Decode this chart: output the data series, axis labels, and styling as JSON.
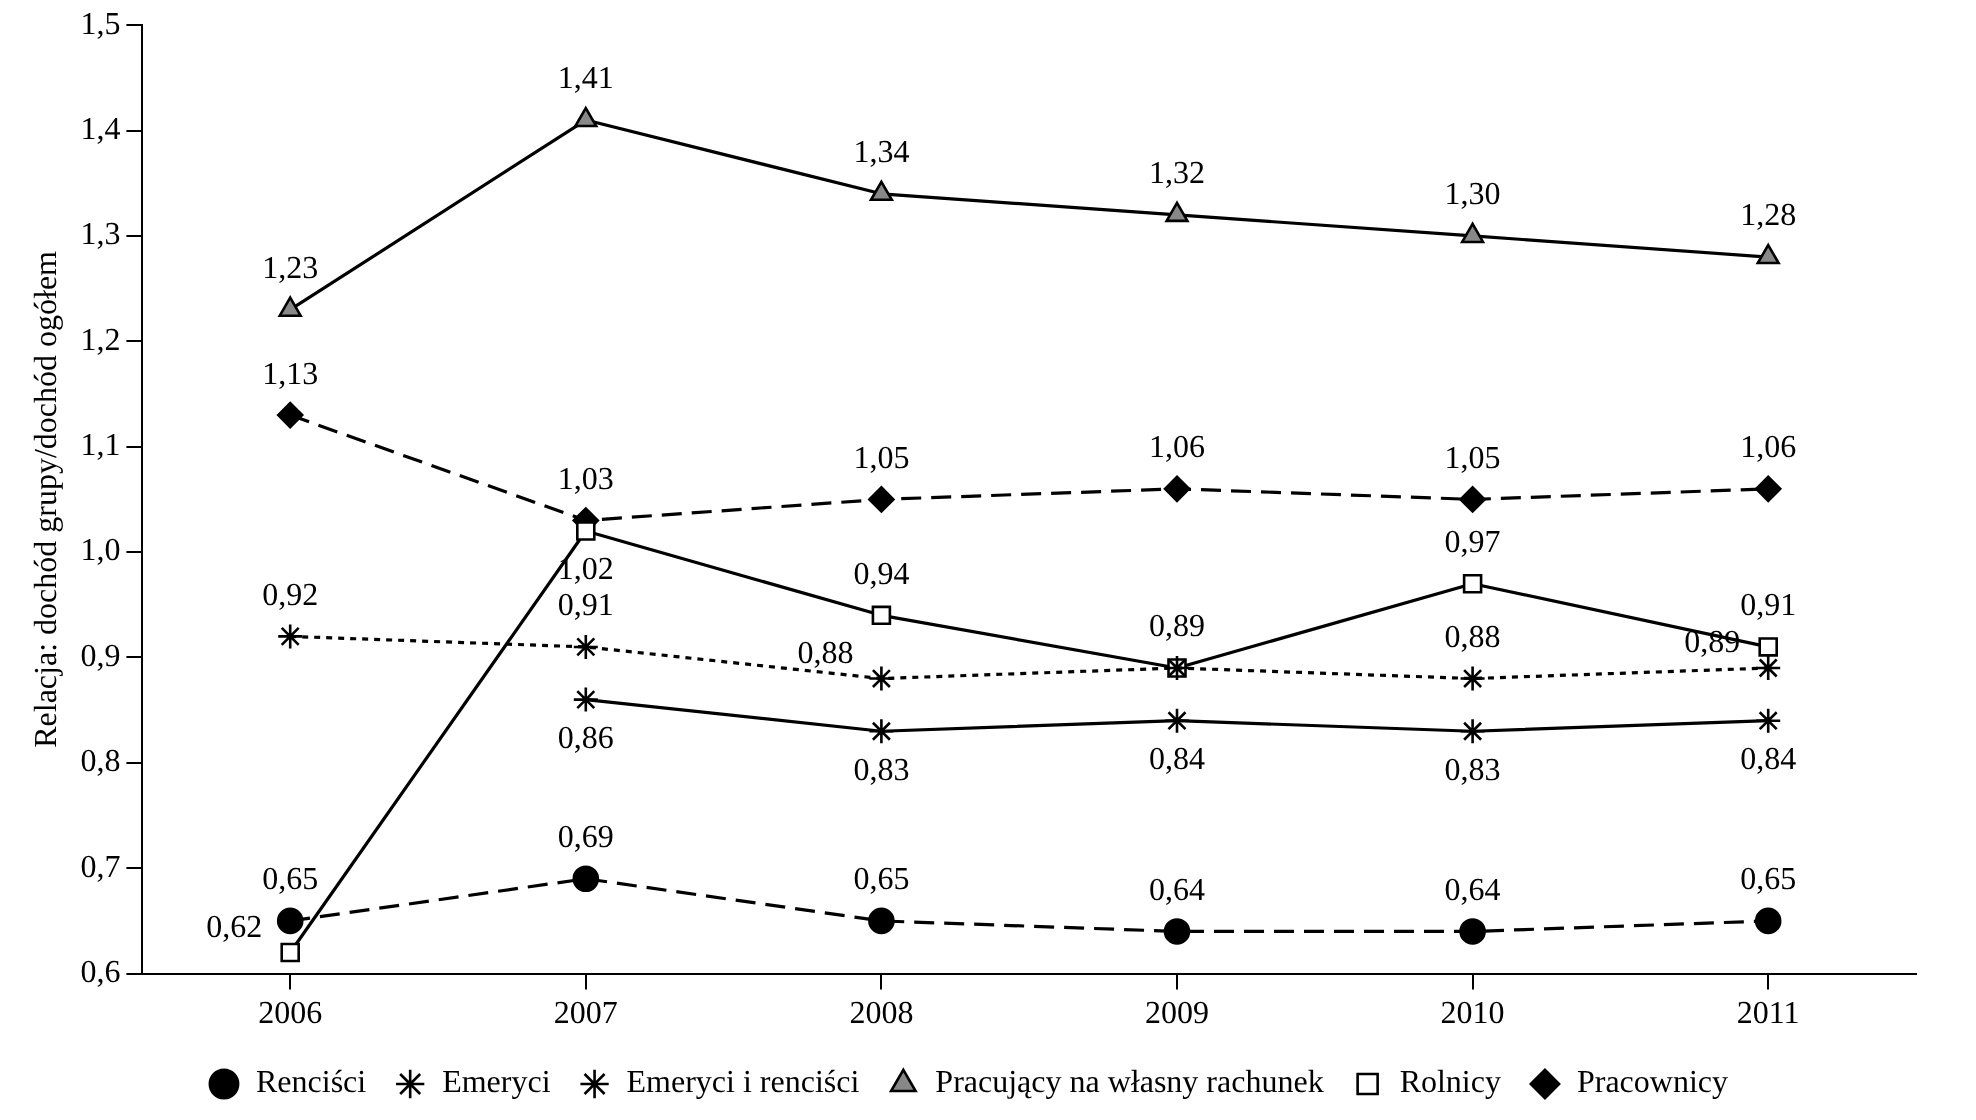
{
  "chart_data": {
    "type": "line",
    "ylabel": "Relacja: dochód grupy/dochód ogółem",
    "categories": [
      "2006",
      "2007",
      "2008",
      "2009",
      "2010",
      "2011"
    ],
    "ylim": [
      0.6,
      1.5
    ],
    "yticks": [
      {
        "value": 0.6,
        "label": "0,6"
      },
      {
        "value": 0.7,
        "label": "0,7"
      },
      {
        "value": 0.8,
        "label": "0,8"
      },
      {
        "value": 0.9,
        "label": "0,9"
      },
      {
        "value": 1.0,
        "label": "1,0"
      },
      {
        "value": 1.1,
        "label": "1,1"
      },
      {
        "value": 1.2,
        "label": "1,2"
      },
      {
        "value": 1.3,
        "label": "1,3"
      },
      {
        "value": 1.4,
        "label": "1,4"
      },
      {
        "value": 1.5,
        "label": "1,5"
      }
    ],
    "grid": false,
    "legend": "bottom",
    "series": [
      {
        "name": "Pracownicy",
        "color": "#000000",
        "marker": "diamond",
        "line_style": "dashed",
        "values": [
          1.13,
          1.03,
          1.05,
          1.06,
          1.05,
          1.06
        ],
        "value_labels": [
          "1,13",
          "1,03",
          "1,05",
          "1,06",
          "1,05",
          "1,06"
        ]
      },
      {
        "name": "Rolnicy",
        "color": "#000000",
        "marker": "square",
        "line_style": "solid",
        "values": [
          0.62,
          1.02,
          0.94,
          0.89,
          0.97,
          0.91
        ],
        "value_labels": [
          "0,62",
          "1,02",
          "0,94",
          "0,89",
          "0,97",
          "0,91"
        ]
      },
      {
        "name": "Pracujący na własny rachunek",
        "color": "#000000",
        "marker": "triangle",
        "line_style": "solid",
        "values": [
          1.23,
          1.41,
          1.34,
          1.32,
          1.3,
          1.28
        ],
        "value_labels": [
          "1,23",
          "1,41",
          "1,34",
          "1,32",
          "1,30",
          "1,28"
        ]
      },
      {
        "name": "Emeryci i renciści",
        "color": "#000000",
        "marker": "cross",
        "line_style": "solid",
        "values": [
          null,
          0.86,
          0.83,
          0.84,
          0.83,
          0.84
        ],
        "value_labels": [
          null,
          "0,86",
          "0,83",
          "0,84",
          "0,83",
          "0,84"
        ]
      },
      {
        "name": "Emeryci",
        "color": "#000000",
        "marker": "cross",
        "line_style": "dotted",
        "values": [
          0.92,
          0.91,
          0.88,
          0.89,
          0.88,
          0.89
        ],
        "value_labels": [
          "0,92",
          "0,91",
          "0,88",
          null,
          "0,88",
          "0,89"
        ]
      },
      {
        "name": "Renciści",
        "color": "#000000",
        "marker": "circle",
        "line_style": "dashed",
        "values": [
          0.65,
          0.69,
          0.65,
          0.64,
          0.64,
          0.65
        ],
        "value_labels": [
          "0,65",
          "0,69",
          "0,65",
          "0,64",
          "0,64",
          "0,65"
        ]
      }
    ]
  }
}
